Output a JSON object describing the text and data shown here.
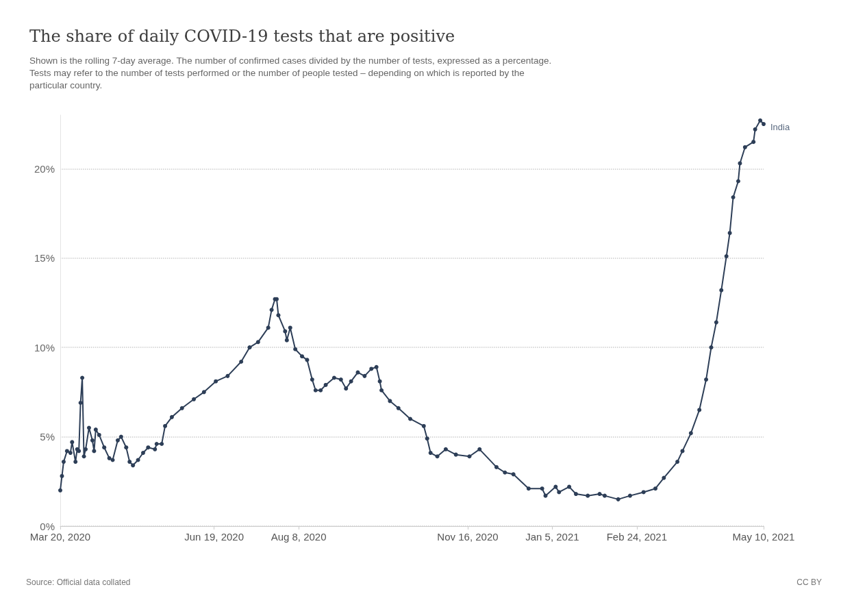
{
  "chart_data": {
    "type": "line",
    "title": "The share of daily COVID-19 tests that are positive",
    "subtitle": "Shown is the rolling 7-day average. The number of confirmed cases divided by the number of tests, expressed as a percentage.\nTests may refer to the number of tests performed or the number of people tested – depending on which is reported by the\nparticular country.",
    "annotations": [
      "Source: Official data collated",
      "CC BY"
    ],
    "x": [
      "2020-03-20",
      "2020-03-21",
      "2020-03-22",
      "2020-03-24",
      "2020-03-26",
      "2020-03-27",
      "2020-03-29",
      "2020-03-30",
      "2020-03-31",
      "2020-04-01",
      "2020-04-02",
      "2020-04-03",
      "2020-04-04",
      "2020-04-06",
      "2020-04-08",
      "2020-04-09",
      "2020-04-10",
      "2020-04-12",
      "2020-04-15",
      "2020-04-18",
      "2020-04-20",
      "2020-04-23",
      "2020-04-25",
      "2020-04-28",
      "2020-04-30",
      "2020-05-02",
      "2020-05-05",
      "2020-05-08",
      "2020-05-11",
      "2020-05-15",
      "2020-05-16",
      "2020-05-19",
      "2020-05-21",
      "2020-05-25",
      "2020-05-31",
      "2020-06-07",
      "2020-06-13",
      "2020-06-20",
      "2020-06-27",
      "2020-07-05",
      "2020-07-10",
      "2020-07-15",
      "2020-07-21",
      "2020-07-23",
      "2020-07-25",
      "2020-07-26",
      "2020-07-27",
      "2020-07-31",
      "2020-08-01",
      "2020-08-03",
      "2020-08-06",
      "2020-08-10",
      "2020-08-13",
      "2020-08-16",
      "2020-08-18",
      "2020-08-21",
      "2020-08-24",
      "2020-08-29",
      "2020-09-02",
      "2020-09-05",
      "2020-09-08",
      "2020-09-12",
      "2020-09-16",
      "2020-09-20",
      "2020-09-23",
      "2020-09-25",
      "2020-09-26",
      "2020-10-01",
      "2020-10-06",
      "2020-10-13",
      "2020-10-21",
      "2020-10-23",
      "2020-10-25",
      "2020-10-29",
      "2020-11-03",
      "2020-11-09",
      "2020-11-17",
      "2020-11-23",
      "2020-12-03",
      "2020-12-08",
      "2020-12-13",
      "2020-12-22",
      "2020-12-30",
      "2021-01-01",
      "2021-01-07",
      "2021-01-09",
      "2021-01-15",
      "2021-01-19",
      "2021-01-26",
      "2021-02-02",
      "2021-02-05",
      "2021-02-13",
      "2021-02-20",
      "2021-02-28",
      "2021-03-07",
      "2021-03-12",
      "2021-03-20",
      "2021-03-23",
      "2021-03-28",
      "2021-04-02",
      "2021-04-06",
      "2021-04-09",
      "2021-04-12",
      "2021-04-15",
      "2021-04-18",
      "2021-04-20",
      "2021-04-22",
      "2021-04-25",
      "2021-04-26",
      "2021-04-29",
      "2021-05-04",
      "2021-05-05",
      "2021-05-08",
      "2021-05-10"
    ],
    "series": [
      {
        "name": "India",
        "color": "#2d3e57",
        "values": [
          2.0,
          2.8,
          3.6,
          4.2,
          4.1,
          4.7,
          3.6,
          4.3,
          4.2,
          6.9,
          8.3,
          3.9,
          4.3,
          5.5,
          4.8,
          4.2,
          5.4,
          5.1,
          4.4,
          3.8,
          3.7,
          4.8,
          5.0,
          4.4,
          3.6,
          3.4,
          3.7,
          4.1,
          4.4,
          4.3,
          4.6,
          4.6,
          5.6,
          6.1,
          6.6,
          7.1,
          7.5,
          8.1,
          8.4,
          9.2,
          10.0,
          10.3,
          11.1,
          12.1,
          12.7,
          12.7,
          11.8,
          10.9,
          10.4,
          11.1,
          9.9,
          9.5,
          9.3,
          8.2,
          7.6,
          7.6,
          7.9,
          8.3,
          8.2,
          7.7,
          8.1,
          8.6,
          8.4,
          8.8,
          8.9,
          8.1,
          7.6,
          7.0,
          6.6,
          6.0,
          5.6,
          4.9,
          4.1,
          3.9,
          4.3,
          4.0,
          3.9,
          4.3,
          3.3,
          3.0,
          2.9,
          2.1,
          2.1,
          1.7,
          2.2,
          1.9,
          2.2,
          1.8,
          1.7,
          1.8,
          1.7,
          1.5,
          1.7,
          1.9,
          2.1,
          2.7,
          3.6,
          4.2,
          5.2,
          6.5,
          8.2,
          10.0,
          11.4,
          13.2,
          15.1,
          16.4,
          18.4,
          19.3,
          20.3,
          21.2,
          21.5,
          22.2,
          22.7,
          22.5
        ]
      }
    ],
    "xlim": [
      "2020-03-20",
      "2021-05-10"
    ],
    "xticks": [
      {
        "value": "2020-03-20",
        "label": "Mar 20, 2020"
      },
      {
        "value": "2020-06-19",
        "label": "Jun 19, 2020"
      },
      {
        "value": "2020-08-08",
        "label": "Aug 8, 2020"
      },
      {
        "value": "2020-11-16",
        "label": "Nov 16, 2020"
      },
      {
        "value": "2021-01-05",
        "label": "Jan 5, 2021"
      },
      {
        "value": "2021-02-24",
        "label": "Feb 24, 2021"
      },
      {
        "value": "2021-05-10",
        "label": "May 10, 2021"
      }
    ],
    "ylim": [
      0,
      23
    ],
    "yticks": [
      {
        "value": 0,
        "label": "0%"
      },
      {
        "value": 5,
        "label": "5%"
      },
      {
        "value": 10,
        "label": "10%"
      },
      {
        "value": 15,
        "label": "15%"
      },
      {
        "value": 20,
        "label": "20%"
      }
    ],
    "grid": "y",
    "legend": false,
    "marker": "circle",
    "line_style": "solid"
  }
}
